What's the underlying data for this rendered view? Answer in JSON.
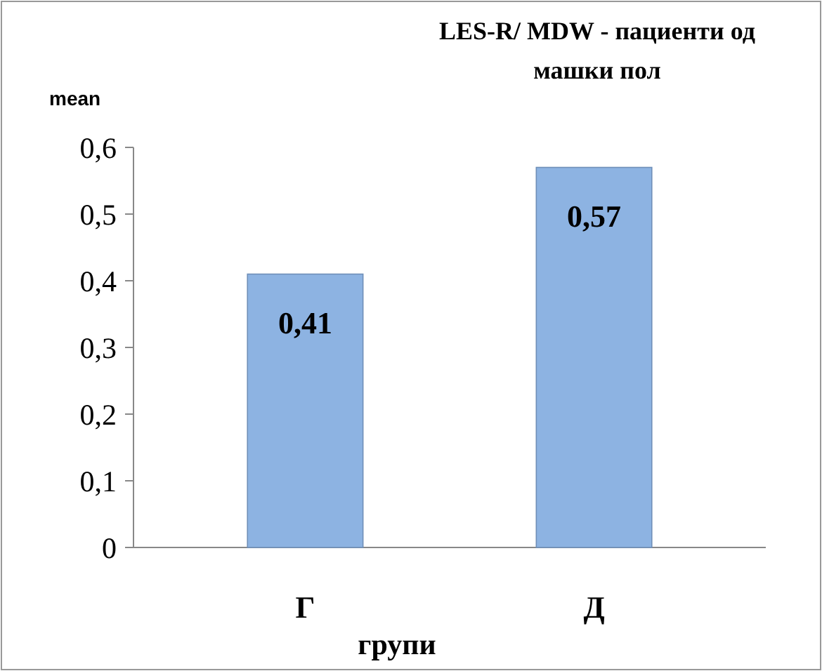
{
  "chart_data": {
    "type": "bar",
    "title": "LES-R/ MDW - пациенти од машки пол",
    "ylabel": "mean",
    "xlabel": "групи",
    "categories": [
      "Г",
      "Д"
    ],
    "values": [
      0.41,
      0.57
    ],
    "color": "#8db3e2",
    "value_labels": [
      "0,41",
      "0,57"
    ],
    "ylim": [
      0,
      0.6
    ],
    "yticks": [
      {
        "value": 0,
        "label": "0"
      },
      {
        "value": 0.1,
        "label": "0,1"
      },
      {
        "value": 0.2,
        "label": "0,2"
      },
      {
        "value": 0.3,
        "label": "0,3"
      },
      {
        "value": 0.4,
        "label": "0,4"
      },
      {
        "value": 0.5,
        "label": "0,5"
      },
      {
        "value": 0.6,
        "label": "0,6"
      }
    ],
    "grid": false
  }
}
